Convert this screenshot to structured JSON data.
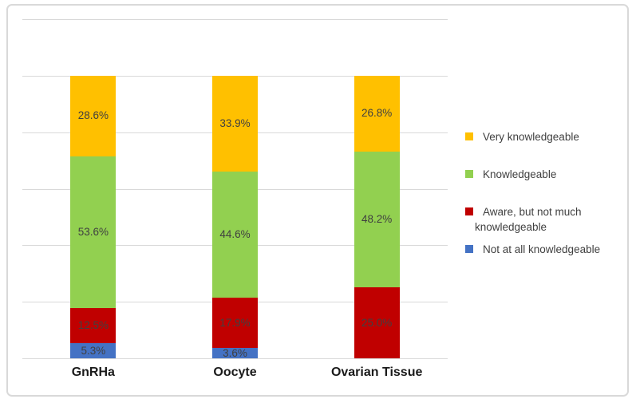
{
  "chart_data": {
    "type": "bar",
    "stacked": true,
    "title": "",
    "xlabel": "",
    "ylabel": "",
    "categories": [
      "GnRHa",
      "Oocyte",
      "Ovarian Tissue"
    ],
    "series": [
      {
        "name": "Very knowledgeable",
        "color": "#FFC000",
        "values": [
          28.6,
          33.9,
          26.8
        ],
        "labels": [
          "28.6%",
          "33.9%",
          "26.8%"
        ]
      },
      {
        "name": "Knowledgeable",
        "color": "#92D050",
        "values": [
          53.6,
          44.6,
          48.2
        ],
        "labels": [
          "53.6%",
          "44.6%",
          "48.2%"
        ]
      },
      {
        "name": "Aware, but not much knowledgeable",
        "color": "#C00000",
        "values": [
          12.5,
          17.9,
          25.0
        ],
        "labels": [
          "12.5%",
          "17.9%",
          "25.0%"
        ]
      },
      {
        "name": "Not at all knowledgeable",
        "color": "#4472C4",
        "values": [
          5.3,
          3.6,
          0
        ],
        "labels": [
          "5.3%",
          "3.6%",
          ""
        ]
      }
    ],
    "ylim": [
      0,
      120
    ],
    "gridline_step": 20,
    "y_tick_labels_visible": false,
    "grid": true,
    "legend_position": "right",
    "colors": {
      "gridline": "#D9D9D9",
      "data_label": "#404040",
      "category_label": "#1A1A1A",
      "legend_text": "#404040",
      "frame_border": "#D9D9D9",
      "background": "#FFFFFF"
    }
  }
}
